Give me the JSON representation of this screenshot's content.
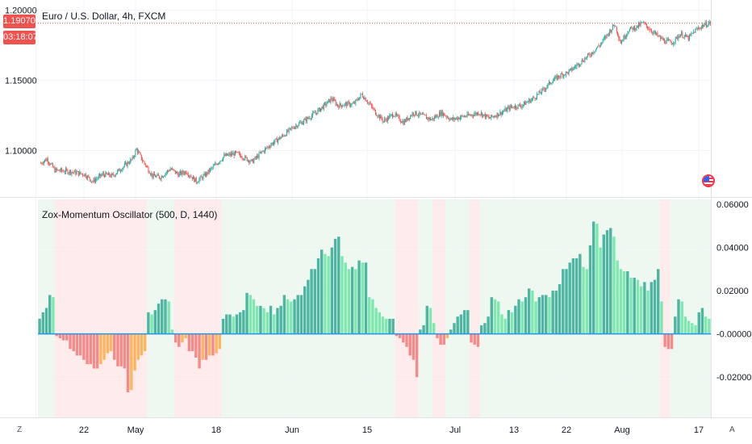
{
  "header": {
    "title": "Euro / U.S. Dollar, 4h, FXCM",
    "last_price": "1.19070",
    "countdown": "03:18:07"
  },
  "indicator": {
    "title": "Zox-Momentum Oscillator (500, D, 1440)"
  },
  "buttons": {
    "zoom": "Z",
    "auto": "A"
  },
  "colors": {
    "up_candle": "#26a69a",
    "down_candle": "#ef5350",
    "bar_dark_green": "#4db6a2",
    "bar_light_green": "#7ee8b0",
    "bar_red": "#f48a8a",
    "bar_orange": "#fdb65f",
    "bg_green": "#e8f5e9",
    "bg_red": "#fde2e2",
    "zero_line": "#2196f3",
    "price_line": "#ef5350"
  },
  "chart_data": [
    {
      "type": "candlestick",
      "title": "Euro / U.S. Dollar, 4h, FXCM",
      "y_ticks": [
        "1.20000",
        "1.15000",
        "1.10000"
      ],
      "ylim": [
        1.0715,
        1.2015
      ],
      "last_price": 1.1907,
      "x_ticks": [
        "22",
        "May",
        "18",
        "Jun",
        "15",
        "Jul",
        "13",
        "22",
        "Aug",
        "17"
      ],
      "close_path": [
        [
          0,
          1.091
        ],
        [
          6,
          1.094
        ],
        [
          14,
          1.086
        ],
        [
          30,
          1.085
        ],
        [
          44,
          1.083
        ],
        [
          52,
          1.078
        ],
        [
          62,
          1.083
        ],
        [
          72,
          1.082
        ],
        [
          82,
          1.088
        ],
        [
          92,
          1.094
        ],
        [
          96,
          1.101
        ],
        [
          102,
          1.093
        ],
        [
          112,
          1.082
        ],
        [
          120,
          1.081
        ],
        [
          130,
          1.087
        ],
        [
          138,
          1.083
        ],
        [
          146,
          1.085
        ],
        [
          156,
          1.078
        ],
        [
          164,
          1.082
        ],
        [
          174,
          1.089
        ],
        [
          184,
          1.096
        ],
        [
          196,
          1.098
        ],
        [
          204,
          1.095
        ],
        [
          212,
          1.092
        ],
        [
          222,
          1.099
        ],
        [
          232,
          1.105
        ],
        [
          244,
          1.111
        ],
        [
          254,
          1.117
        ],
        [
          264,
          1.121
        ],
        [
          276,
          1.127
        ],
        [
          286,
          1.133
        ],
        [
          292,
          1.137
        ],
        [
          298,
          1.132
        ],
        [
          306,
          1.133
        ],
        [
          314,
          1.133
        ],
        [
          322,
          1.14
        ],
        [
          328,
          1.135
        ],
        [
          336,
          1.127
        ],
        [
          344,
          1.121
        ],
        [
          354,
          1.126
        ],
        [
          364,
          1.12
        ],
        [
          374,
          1.127
        ],
        [
          382,
          1.125
        ],
        [
          392,
          1.122
        ],
        [
          402,
          1.127
        ],
        [
          412,
          1.122
        ],
        [
          422,
          1.124
        ],
        [
          430,
          1.125
        ],
        [
          440,
          1.127
        ],
        [
          450,
          1.123
        ],
        [
          462,
          1.127
        ],
        [
          472,
          1.131
        ],
        [
          482,
          1.132
        ],
        [
          494,
          1.137
        ],
        [
          504,
          1.143
        ],
        [
          512,
          1.149
        ],
        [
          520,
          1.153
        ],
        [
          530,
          1.156
        ],
        [
          540,
          1.162
        ],
        [
          552,
          1.169
        ],
        [
          562,
          1.176
        ],
        [
          570,
          1.184
        ],
        [
          576,
          1.19
        ],
        [
          582,
          1.177
        ],
        [
          590,
          1.186
        ],
        [
          598,
          1.188
        ],
        [
          604,
          1.191
        ],
        [
          612,
          1.186
        ],
        [
          620,
          1.181
        ],
        [
          626,
          1.178
        ],
        [
          634,
          1.177
        ],
        [
          642,
          1.183
        ],
        [
          650,
          1.18
        ],
        [
          656,
          1.185
        ],
        [
          664,
          1.189
        ],
        [
          672,
          1.191
        ]
      ]
    },
    {
      "type": "bar",
      "title": "Zox-Momentum Oscillator (500, D, 1440)",
      "y_ticks": [
        "0.06000",
        "0.04000",
        "0.02000",
        "-0.00000",
        "-0.02000"
      ],
      "ylim": [
        -0.036,
        0.06
      ],
      "background_regions": [
        {
          "from": 0,
          "to": 5,
          "state": "up"
        },
        {
          "from": 5,
          "to": 32,
          "state": "down"
        },
        {
          "from": 32,
          "to": 40,
          "state": "up"
        },
        {
          "from": 40,
          "to": 54,
          "state": "down"
        },
        {
          "from": 54,
          "to": 105,
          "state": "up"
        },
        {
          "from": 105,
          "to": 112,
          "state": "down"
        },
        {
          "from": 112,
          "to": 116,
          "state": "up"
        },
        {
          "from": 116,
          "to": 120,
          "state": "down"
        },
        {
          "from": 120,
          "to": 127,
          "state": "up"
        },
        {
          "from": 127,
          "to": 130,
          "state": "down"
        },
        {
          "from": 130,
          "to": 183,
          "state": "up"
        },
        {
          "from": 183,
          "to": 186,
          "state": "down"
        },
        {
          "from": 186,
          "to": 198,
          "state": "up"
        }
      ],
      "values": [
        0.007,
        0.01,
        0.012,
        0.018,
        0.017,
        -0.001,
        -0.002,
        -0.003,
        -0.003,
        -0.007,
        -0.008,
        -0.01,
        -0.01,
        -0.012,
        -0.014,
        -0.014,
        -0.016,
        -0.016,
        -0.014,
        -0.012,
        -0.009,
        -0.008,
        -0.012,
        -0.015,
        -0.015,
        -0.016,
        -0.027,
        -0.026,
        -0.017,
        -0.012,
        -0.01,
        -0.008,
        0.01,
        0.009,
        0.011,
        0.014,
        0.016,
        0.016,
        0.015,
        0.002,
        -0.004,
        -0.006,
        -0.004,
        -0.002,
        -0.008,
        -0.008,
        -0.011,
        -0.016,
        -0.012,
        -0.012,
        -0.01,
        -0.01,
        -0.009,
        -0.007,
        0.007,
        0.009,
        0.009,
        0.008,
        0.009,
        0.01,
        0.011,
        0.019,
        0.018,
        0.016,
        0.013,
        0.013,
        0.012,
        0.01,
        0.013,
        0.009,
        0.012,
        0.013,
        0.018,
        0.016,
        0.015,
        0.016,
        0.018,
        0.018,
        0.022,
        0.025,
        0.03,
        0.03,
        0.035,
        0.039,
        0.037,
        0.036,
        0.04,
        0.044,
        0.045,
        0.036,
        0.033,
        0.03,
        0.031,
        0.03,
        0.034,
        0.033,
        0.033,
        0.017,
        0.016,
        0.012,
        0.01,
        0.008,
        0.007,
        0.007,
        0.007,
        -0.001,
        -0.002,
        -0.004,
        -0.006,
        -0.01,
        -0.012,
        -0.02,
        0.002,
        0.004,
        0.013,
        0.012,
        0.005,
        -0.002,
        -0.005,
        -0.005,
        -0.002,
        0.002,
        0.005,
        0.008,
        0.009,
        0.011,
        0.011,
        -0.004,
        -0.005,
        -0.006,
        0.004,
        0.005,
        0.008,
        0.017,
        0.016,
        0.015,
        0.009,
        0.007,
        0.011,
        0.01,
        0.013,
        0.016,
        0.015,
        0.017,
        0.021,
        0.02,
        0.015,
        0.017,
        0.018,
        0.018,
        0.017,
        0.02,
        0.02,
        0.023,
        0.03,
        0.03,
        0.033,
        0.035,
        0.035,
        0.037,
        0.031,
        0.03,
        0.041,
        0.052,
        0.051,
        0.04,
        0.046,
        0.048,
        0.049,
        0.045,
        0.034,
        0.03,
        0.029,
        0.029,
        0.026,
        0.026,
        0.025,
        0.022,
        0.024,
        0.02,
        0.024,
        0.025,
        0.03,
        0.015,
        -0.006,
        -0.007,
        -0.007,
        0.008,
        0.016,
        0.015,
        0.008,
        0.006,
        0.005,
        0.004,
        0.01,
        0.012,
        0.008,
        0.007
      ]
    }
  ]
}
